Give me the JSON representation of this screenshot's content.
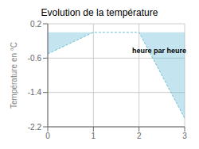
{
  "chart_data": {
    "type": "area",
    "title": "Evolution de la température",
    "ylabel": "Température en °C",
    "annotations": [
      {
        "text": "heure par heure",
        "x": 1.85,
        "y": -0.42
      }
    ],
    "x": [
      0,
      1,
      2,
      3
    ],
    "values": [
      -0.5,
      0.0,
      0.0,
      -2.0
    ],
    "xlim": [
      0,
      3
    ],
    "ylim": [
      -2.2,
      0.2
    ],
    "xticks": [
      0,
      1,
      2,
      3
    ],
    "yticks": [
      0.2,
      -0.6,
      -1.4,
      -2.2
    ],
    "grid": true,
    "line_style": "dashed",
    "color": "#6bbfd6"
  }
}
